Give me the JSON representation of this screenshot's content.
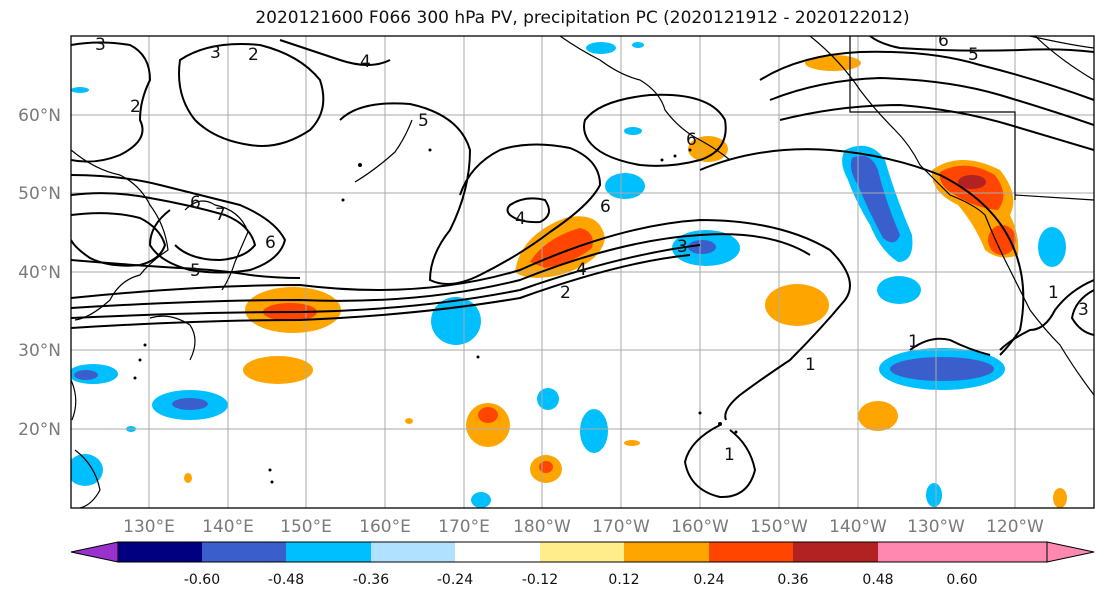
{
  "title": "2020121600 F066 300 hPa PV, precipitation PC (2020121912 - 2020122012)",
  "lat_labels": [
    "60°N",
    "50°N",
    "40°N",
    "30°N",
    "20°N"
  ],
  "lon_labels": [
    "130°E",
    "140°E",
    "150°E",
    "160°E",
    "170°E",
    "180°W",
    "170°W",
    "160°W",
    "150°W",
    "140°W",
    "130°W",
    "120°W"
  ],
  "pv_contour_labels": [
    "3",
    "2",
    "3",
    "4",
    "2",
    "5",
    "6",
    "6",
    "4",
    "6",
    "3",
    "4",
    "2",
    "1",
    "1",
    "1",
    "3",
    "1",
    "5",
    "6",
    "5",
    "7",
    "6"
  ],
  "colorbar": {
    "ticks": [
      "-0.60",
      "-0.48",
      "-0.36",
      "-0.24",
      "-0.12",
      "0.12",
      "0.24",
      "0.36",
      "0.48",
      "0.60"
    ],
    "colors": [
      "#9932cc",
      "#000080",
      "#3a5fcd",
      "#00bfff",
      "#b0e2ff",
      "#ffffff",
      "#ffec8b",
      "#ffa500",
      "#ff4500",
      "#b22222",
      "#ff88b0"
    ]
  }
}
